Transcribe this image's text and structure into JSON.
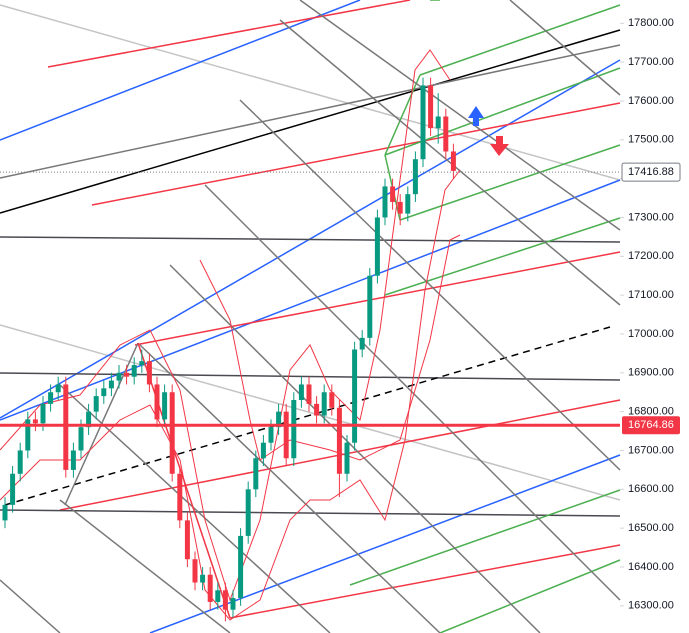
{
  "chart_data": {
    "type": "candlestick",
    "ylim": [
      16230,
      17860
    ],
    "yticks": [
      {
        "value": 16300,
        "label": "16300.00"
      },
      {
        "value": 16400,
        "label": "16400.00"
      },
      {
        "value": 16500,
        "label": "16500.00"
      },
      {
        "value": 16600,
        "label": "16600.00"
      },
      {
        "value": 16700,
        "label": "16700.00"
      },
      {
        "value": 16800,
        "label": "16800.00"
      },
      {
        "value": 16900,
        "label": "16900.00"
      },
      {
        "value": 17000,
        "label": "17000.00"
      },
      {
        "value": 17100,
        "label": "17100.00"
      },
      {
        "value": 17200,
        "label": "17200.00"
      },
      {
        "value": 17300,
        "label": "17300.00"
      },
      {
        "value": 17400,
        "label": "17400.00"
      },
      {
        "value": 17500,
        "label": "17500.00"
      },
      {
        "value": 17600,
        "label": "17600.00"
      },
      {
        "value": 17700,
        "label": "17700.00"
      },
      {
        "value": 17800,
        "label": "17800.00"
      }
    ],
    "up_color": "#089981",
    "down_color": "#f23645",
    "open": [
      16520,
      16560,
      16640,
      16700,
      16780,
      16770,
      16820,
      16850,
      16870,
      16650,
      16700,
      16760,
      16800,
      16840,
      16860,
      16880,
      16900,
      16890,
      16920,
      16930,
      16870,
      16780,
      16850,
      16640,
      16520,
      16420,
      16360,
      16380,
      16310,
      16340,
      16290,
      16320,
      16480,
      16600,
      16680,
      16720,
      16760,
      16800,
      16680,
      16830,
      16870,
      16820,
      16790,
      16850,
      16810,
      16640,
      16720,
      16960,
      16990,
      17150,
      17300,
      17380,
      17340,
      17310,
      17360,
      17450,
      17640,
      17530,
      17560,
      17470
    ],
    "high": [
      16580,
      16660,
      16720,
      16800,
      16800,
      16840,
      16870,
      16890,
      16890,
      16720,
      16780,
      16820,
      16860,
      16880,
      16900,
      16920,
      16920,
      16940,
      16960,
      16950,
      16890,
      16870,
      16870,
      16660,
      16540,
      16440,
      16400,
      16400,
      16360,
      16360,
      16340,
      16500,
      16620,
      16700,
      16740,
      16780,
      16820,
      16820,
      16850,
      16890,
      16890,
      16840,
      16870,
      16870,
      16830,
      16740,
      16980,
      17010,
      17170,
      17320,
      17400,
      17400,
      17360,
      17380,
      17470,
      17660,
      17660,
      17620,
      17580,
      17490
    ],
    "low": [
      16500,
      16540,
      16620,
      16680,
      16750,
      16750,
      16800,
      16830,
      16630,
      16630,
      16680,
      16740,
      16780,
      16820,
      16840,
      16860,
      16870,
      16870,
      16900,
      16850,
      16760,
      16760,
      16620,
      16500,
      16400,
      16340,
      16340,
      16290,
      16290,
      16260,
      16270,
      16300,
      16460,
      16580,
      16660,
      16700,
      16740,
      16660,
      16660,
      16810,
      16800,
      16770,
      16770,
      16790,
      16580,
      16620,
      16700,
      16940,
      16970,
      17130,
      17280,
      17320,
      17280,
      17290,
      17340,
      17430,
      17510,
      17490,
      17450,
      17400
    ],
    "close": [
      16560,
      16640,
      16700,
      16780,
      16770,
      16820,
      16850,
      16870,
      16650,
      16700,
      16760,
      16800,
      16840,
      16860,
      16880,
      16900,
      16890,
      16920,
      16930,
      16870,
      16780,
      16850,
      16640,
      16520,
      16420,
      16360,
      16380,
      16310,
      16340,
      16290,
      16320,
      16480,
      16600,
      16680,
      16720,
      16760,
      16800,
      16680,
      16830,
      16870,
      16820,
      16790,
      16850,
      16810,
      16640,
      16720,
      16960,
      16990,
      17150,
      17300,
      17380,
      17340,
      17310,
      17360,
      17450,
      17640,
      17530,
      17560,
      17470,
      17420
    ],
    "last_price": 17416.88,
    "last_price_color": "#787b86",
    "level_price": 16764.86,
    "level_color": "#f23645"
  }
}
